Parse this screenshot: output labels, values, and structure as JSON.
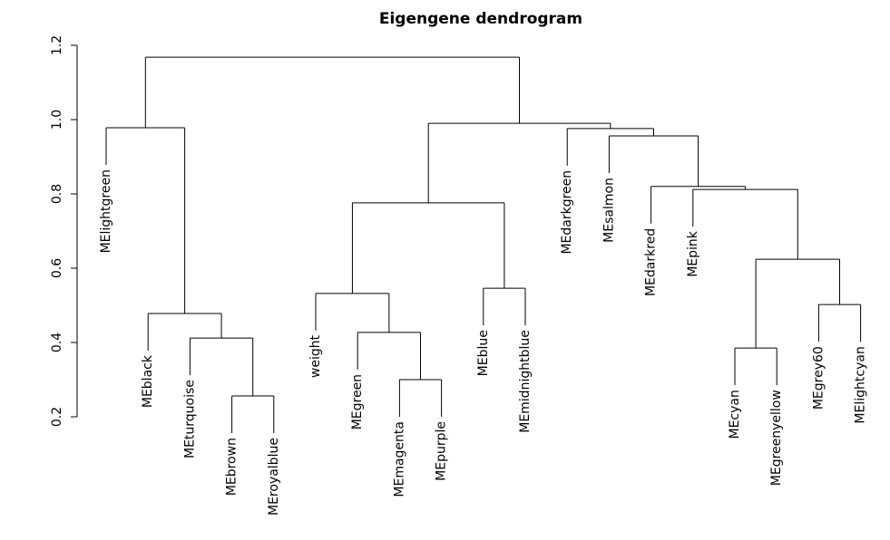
{
  "chart_data": {
    "type": "dendrogram",
    "title": "Eigengene dendrogram",
    "ylim": [
      0.2,
      1.2
    ],
    "yticks": [
      0.2,
      0.4,
      0.6,
      0.8,
      {
        "value": 1,
        "label": "1.0"
      },
      1.2
    ],
    "tree": {
      "height": 1.168,
      "children": [
        {
          "height": 0.978,
          "children": [
            {
              "label": "MElightgreen"
            },
            {
              "height": 0.478,
              "children": [
                {
                  "label": "MEblack"
                },
                {
                  "height": 0.412,
                  "children": [
                    {
                      "label": "MEturquoise"
                    },
                    {
                      "height": 0.256,
                      "children": [
                        {
                          "label": "MEbrown"
                        },
                        {
                          "label": "MEroyalblue"
                        }
                      ]
                    }
                  ]
                }
              ]
            }
          ]
        },
        {
          "height": 0.99,
          "children": [
            {
              "height": 0.776,
              "children": [
                {
                  "height": 0.532,
                  "children": [
                    {
                      "label": "weight"
                    },
                    {
                      "height": 0.427,
                      "children": [
                        {
                          "label": "MEgreen"
                        },
                        {
                          "height": 0.3,
                          "children": [
                            {
                              "label": "MEmagenta"
                            },
                            {
                              "label": "MEpurple"
                            }
                          ]
                        }
                      ]
                    }
                  ]
                },
                {
                  "height": 0.546,
                  "children": [
                    {
                      "label": "MEblue"
                    },
                    {
                      "label": "MEmidnightblue"
                    }
                  ]
                }
              ]
            },
            {
              "height": 0.976,
              "children": [
                {
                  "label": "MEdarkgreen"
                },
                {
                  "height": 0.956,
                  "children": [
                    {
                      "label": "MEsalmon"
                    },
                    {
                      "height": 0.82,
                      "children": [
                        {
                          "label": "MEdarkred"
                        },
                        {
                          "height": 0.812,
                          "children": [
                            {
                              "label": "MEpink"
                            },
                            {
                              "height": 0.624,
                              "children": [
                                {
                                  "height": 0.385,
                                  "children": [
                                    {
                                      "label": "MEcyan"
                                    },
                                    {
                                      "label": "MEgreenyellow"
                                    }
                                  ]
                                },
                                {
                                  "height": 0.502,
                                  "children": [
                                    {
                                      "label": "MEgrey60"
                                    },
                                    {
                                      "label": "MElightcyan"
                                    }
                                  ]
                                }
                              ]
                            }
                          ]
                        }
                      ]
                    }
                  ]
                }
              ]
            }
          ]
        }
      ]
    }
  }
}
